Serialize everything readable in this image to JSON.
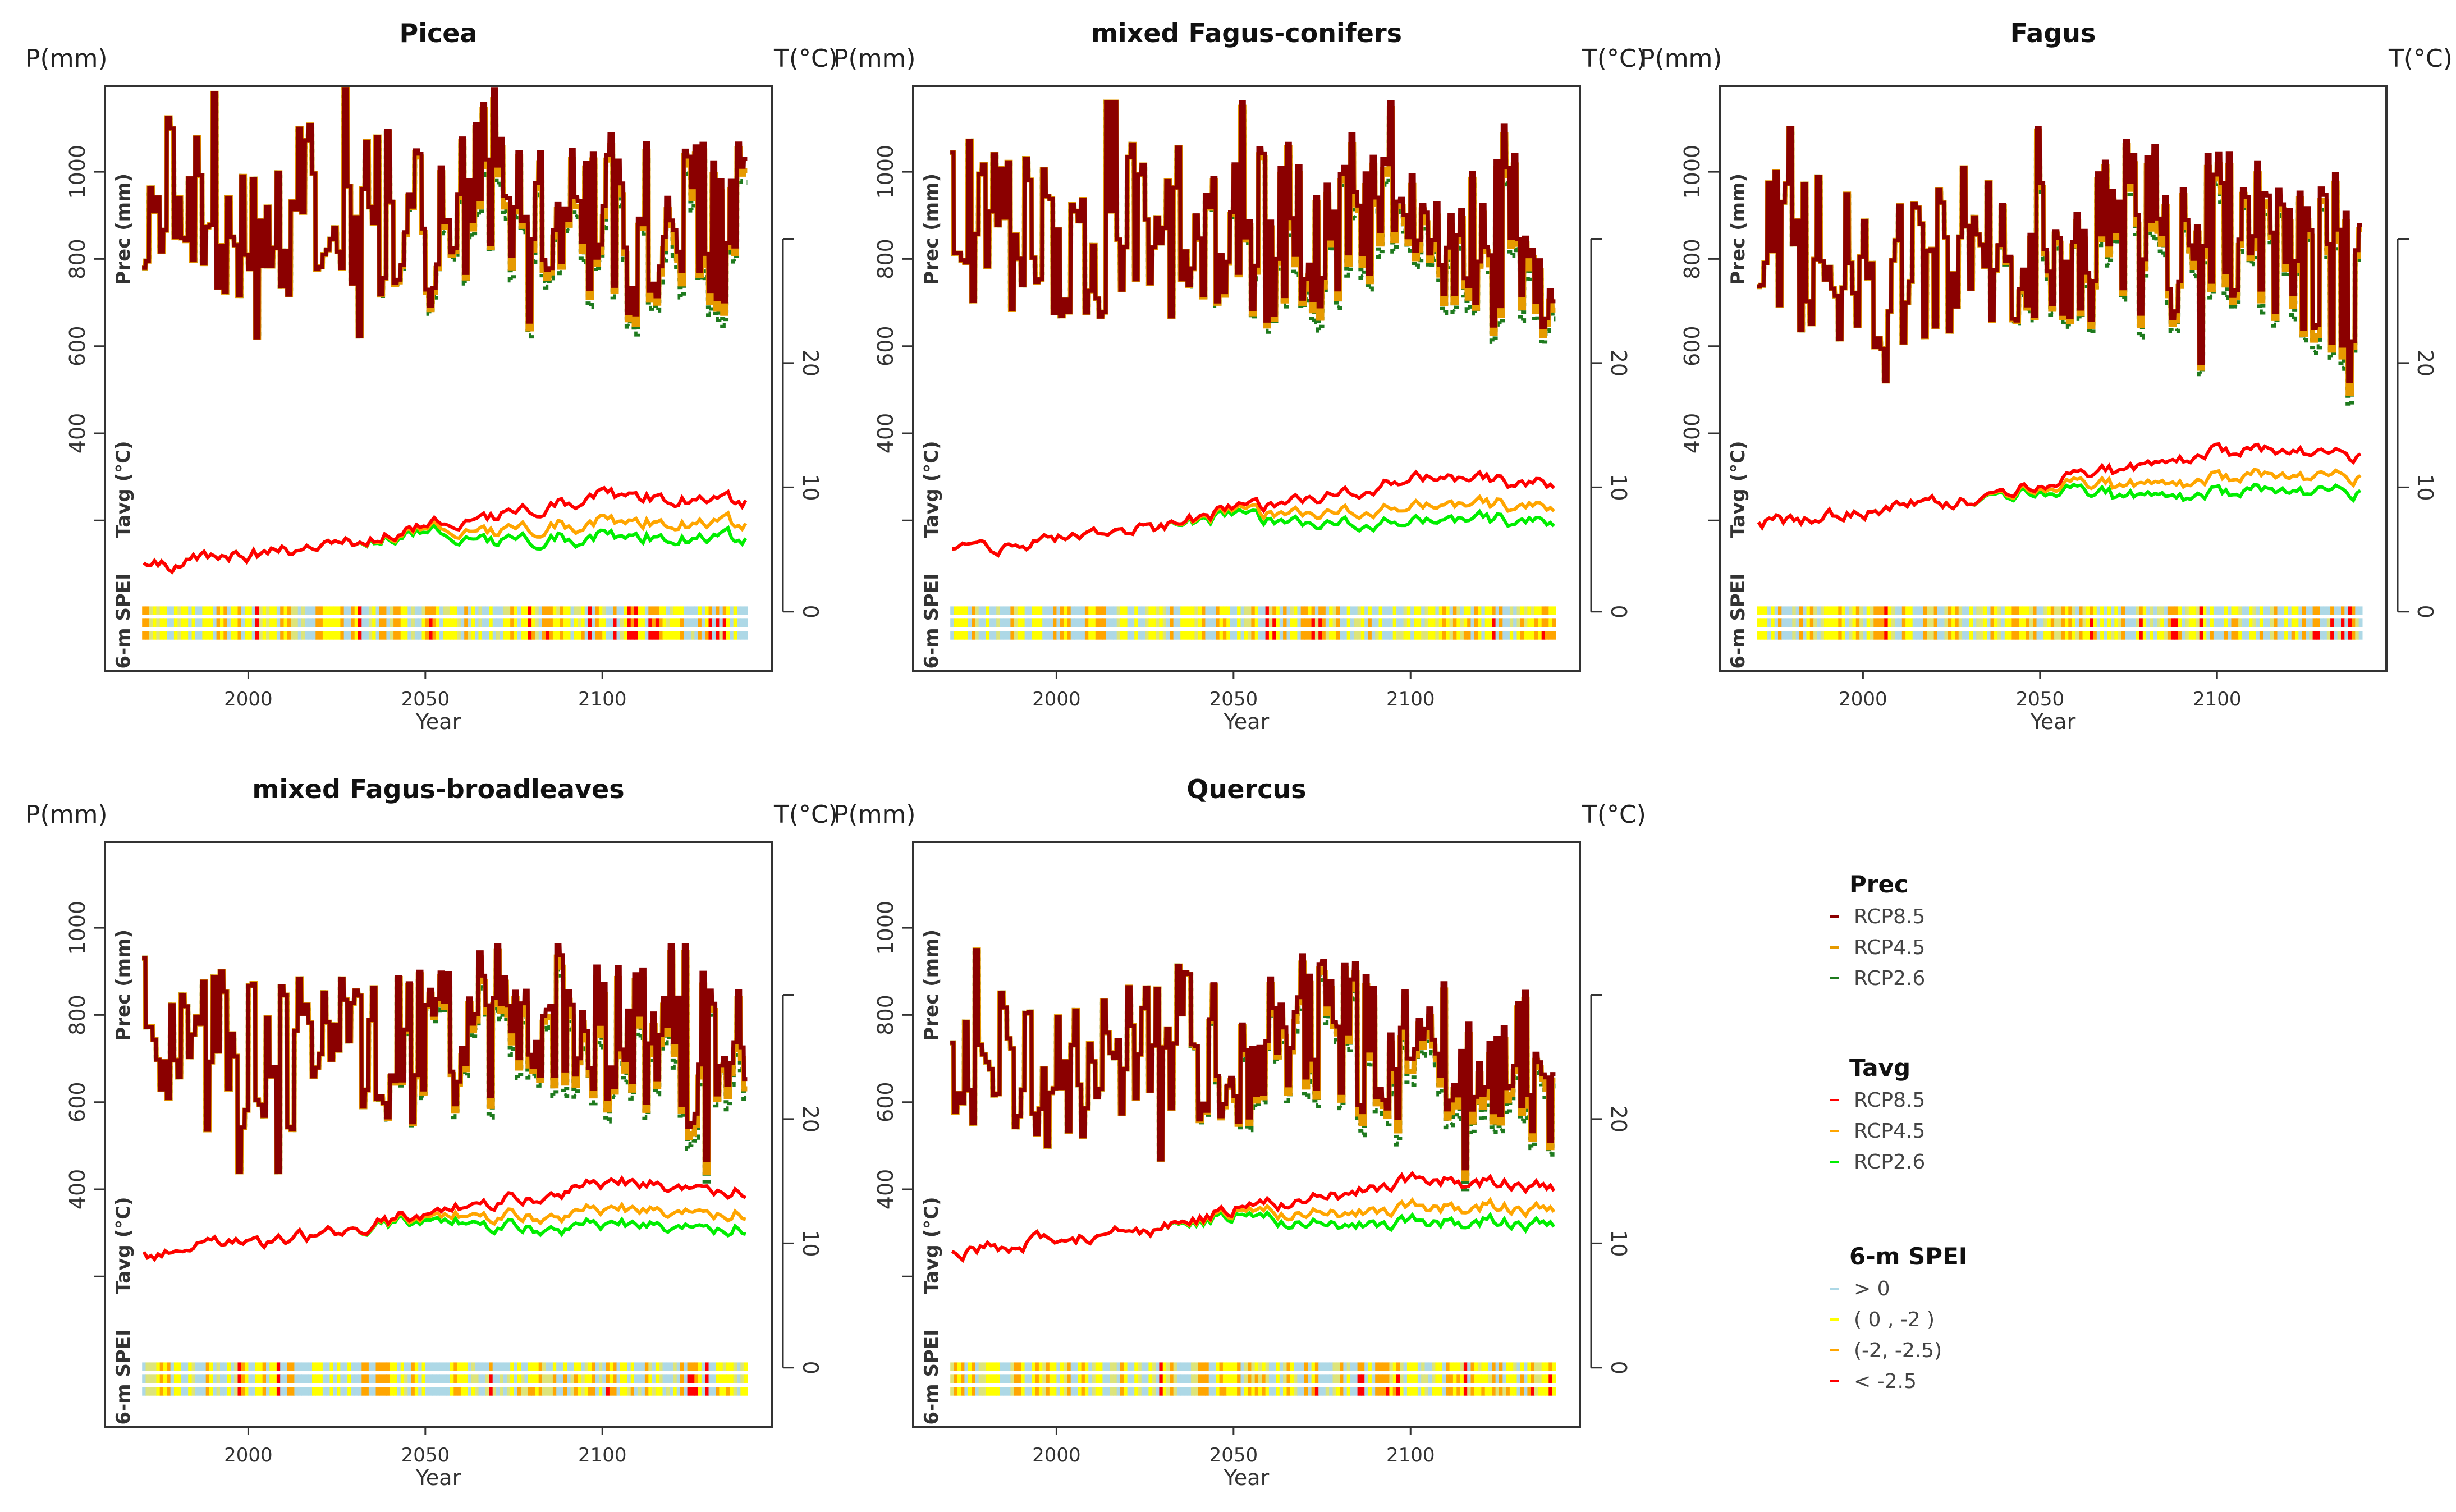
{
  "chart_data": {
    "type": "line",
    "common": {
      "left_unit": "P(mm)",
      "right_unit": "T(°C)",
      "prec_label": "Prec (mm)",
      "tavg_label": "Tavg (°C)",
      "spei_label": "6-m SPEI",
      "xlabel": "Year",
      "xticks": [
        2000,
        2050,
        2100
      ],
      "prec_ticks": [
        400,
        600,
        800,
        1000
      ],
      "temp_ticks": [
        0,
        10,
        20
      ],
      "xlim": [
        1970,
        2140
      ],
      "scenario_split_year": 2035,
      "key_years": [
        1970,
        2000,
        2030,
        2050,
        2070,
        2100,
        2120,
        2140
      ]
    },
    "panels": [
      {
        "title": "Picea",
        "prec_mean_rcp85": [
          950,
          880,
          930,
          880,
          950,
          930,
          900,
          900
        ],
        "prec_range": [
          620,
          1190
        ],
        "tavg": {
          "rcp85": [
            3.5,
            4.6,
            5.6,
            7.0,
            7.8,
            9.4,
            9.2,
            8.8
          ],
          "rcp45": [
            3.5,
            4.6,
            5.6,
            6.8,
            6.6,
            7.2,
            7.2,
            7.0
          ],
          "rcp26": [
            3.5,
            4.6,
            5.6,
            6.5,
            5.8,
            6.0,
            6.0,
            5.8
          ]
        }
      },
      {
        "title": "mixed Fagus-conifers",
        "prec_mean_rcp85": [
          880,
          830,
          880,
          850,
          900,
          880,
          850,
          830
        ],
        "prec_range": [
          560,
          1160
        ],
        "tavg": {
          "rcp85": [
            4.8,
            5.9,
            6.9,
            8.3,
            9.1,
            10.7,
            10.5,
            10.1
          ],
          "rcp45": [
            4.8,
            5.9,
            6.9,
            8.1,
            7.9,
            8.5,
            8.5,
            8.3
          ],
          "rcp26": [
            4.8,
            5.9,
            6.9,
            7.8,
            7.1,
            7.3,
            7.3,
            7.1
          ]
        }
      },
      {
        "title": "Fagus",
        "prec_mean_rcp85": [
          850,
          780,
          830,
          820,
          880,
          850,
          820,
          780
        ],
        "prec_range": [
          520,
          1100
        ],
        "tavg": {
          "rcp85": [
            7.0,
            8.1,
            9.1,
            10.5,
            11.3,
            12.9,
            12.7,
            12.3
          ],
          "rcp45": [
            7.0,
            8.1,
            9.1,
            10.3,
            10.1,
            10.7,
            10.7,
            10.5
          ],
          "rcp26": [
            7.0,
            8.1,
            9.1,
            10.0,
            9.3,
            9.5,
            9.5,
            9.3
          ]
        }
      },
      {
        "title": "mixed Fagus-broadleaves",
        "prec_mean_rcp85": [
          760,
          690,
          760,
          720,
          790,
          760,
          720,
          710
        ],
        "prec_range": [
          440,
          960
        ],
        "tavg": {
          "rcp85": [
            9.0,
            10.1,
            11.1,
            12.5,
            13.3,
            14.9,
            14.7,
            14.3
          ],
          "rcp45": [
            9.0,
            10.1,
            11.1,
            12.3,
            12.1,
            12.7,
            12.7,
            12.5
          ],
          "rcp26": [
            9.0,
            10.1,
            11.1,
            12.0,
            11.3,
            11.5,
            11.5,
            11.3
          ]
        }
      },
      {
        "title": "Quercus",
        "prec_mean_rcp85": [
          740,
          660,
          740,
          700,
          780,
          740,
          700,
          690
        ],
        "prec_range": [
          440,
          960
        ],
        "tavg": {
          "rcp85": [
            9.2,
            10.3,
            11.3,
            12.7,
            13.5,
            15.1,
            14.9,
            14.5
          ],
          "rcp45": [
            9.2,
            10.3,
            11.3,
            12.5,
            12.3,
            12.9,
            12.9,
            12.7
          ],
          "rcp26": [
            9.2,
            10.3,
            11.3,
            12.2,
            11.5,
            11.7,
            11.7,
            11.5
          ]
        }
      }
    ],
    "legend": {
      "placement": "right",
      "groups": [
        {
          "title": "Prec",
          "items": [
            {
              "label": "RCP8.5",
              "color": "#8b0000"
            },
            {
              "label": "RCP4.5",
              "color": "#e69a00"
            },
            {
              "label": "RCP2.6",
              "color": "#1e7a1e"
            }
          ]
        },
        {
          "title": "Tavg",
          "items": [
            {
              "label": "RCP8.5",
              "color": "#ff0000"
            },
            {
              "label": "RCP4.5",
              "color": "#ffa500"
            },
            {
              "label": "RCP2.6",
              "color": "#00ee00"
            }
          ]
        },
        {
          "title": "6-m SPEI",
          "items": [
            {
              "label": "> 0",
              "color": "#add8e6"
            },
            {
              "label": "( 0 , -2 )",
              "color": "#ffff00"
            },
            {
              "label": "(-2, -2.5)",
              "color": "#ffa500"
            },
            {
              "label": "< -2.5",
              "color": "#ff0000"
            }
          ]
        }
      ]
    }
  }
}
